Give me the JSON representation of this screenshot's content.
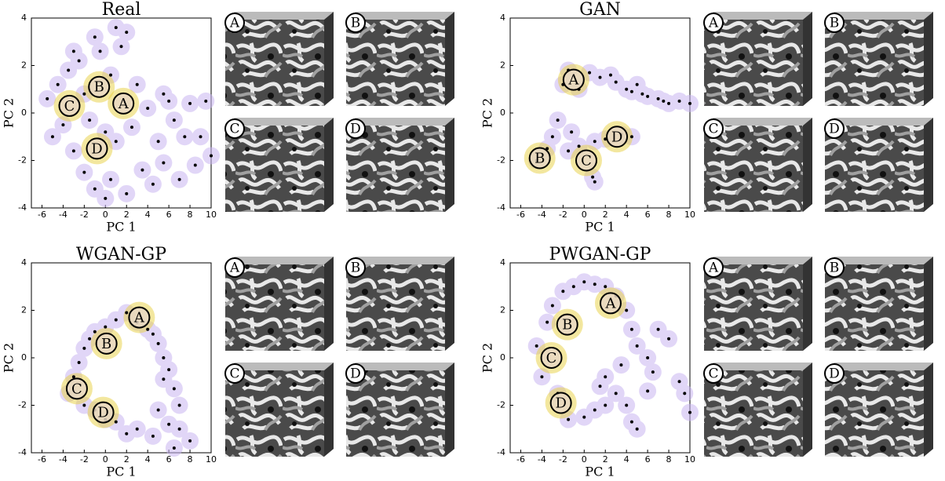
{
  "chart_data": [
    {
      "type": "scatter",
      "title": "Real",
      "xlabel": "PC 1",
      "ylabel": "PC 2",
      "xlim": [
        -7,
        10
      ],
      "ylim": [
        -4,
        4
      ],
      "xticks": [
        -6,
        -4,
        -2,
        0,
        2,
        4,
        6,
        8,
        10
      ],
      "yticks": [
        -4,
        -2,
        0,
        2,
        4
      ],
      "color": "#000000",
      "x": [
        -5.5,
        -5,
        -4.5,
        -4,
        -3.5,
        -3,
        -2.5,
        -2,
        -2,
        -1.5,
        -1,
        -1,
        -0.5,
        0,
        0.5,
        0.5,
        1,
        1,
        1.5,
        2,
        2.5,
        3,
        3.5,
        4,
        4.5,
        5,
        5.5,
        5.5,
        6,
        6.5,
        7,
        7.5,
        8,
        8.5,
        9,
        9.5,
        10,
        2,
        -3,
        0
      ],
      "values": [
        0.6,
        -1,
        1.2,
        -0.5,
        1.8,
        -1.6,
        2.2,
        0.8,
        -2.5,
        -0.3,
        3.2,
        -3.2,
        2.6,
        -0.8,
        1.6,
        -2.8,
        3.6,
        -1.2,
        2.8,
        -3.4,
        -0.6,
        1.2,
        -2.4,
        0.2,
        -3,
        -1.2,
        0.8,
        -2.1,
        0.5,
        -0.3,
        -2.8,
        -1,
        0.4,
        -2.2,
        -1,
        0.5,
        -1.8,
        3.4,
        2.6,
        -3.6
      ],
      "annotations": [
        {
          "label": "A",
          "x": 1.7,
          "y": 0.4
        },
        {
          "label": "B",
          "x": -0.6,
          "y": 1.1
        },
        {
          "label": "C",
          "x": -3.4,
          "y": 0.3
        },
        {
          "label": "D",
          "x": -0.8,
          "y": -1.5
        }
      ]
    },
    {
      "type": "scatter",
      "title": "GAN",
      "xlabel": "PC 1",
      "ylabel": "PC 2",
      "xlim": [
        -7,
        10
      ],
      "ylim": [
        -4,
        4
      ],
      "xticks": [
        -6,
        -4,
        -2,
        0,
        2,
        4,
        6,
        8,
        10
      ],
      "yticks": [
        -4,
        -2,
        0,
        2,
        4
      ],
      "color": "#000000",
      "x": [
        -2,
        -1.5,
        -0.5,
        0.5,
        1.5,
        2.5,
        3,
        4,
        4.5,
        5,
        5.5,
        6,
        7,
        7.5,
        8,
        9,
        10,
        -2.5,
        -3,
        -3.5,
        -4.5,
        -1.5,
        -0.5,
        1,
        2,
        3.5,
        4.5,
        0.8,
        1,
        -1.2
      ],
      "values": [
        1.2,
        1.8,
        1,
        1.7,
        1.5,
        1.6,
        1.3,
        1,
        0.9,
        1.2,
        0.8,
        0.7,
        0.6,
        0.5,
        0.4,
        0.5,
        0.4,
        -0.3,
        -1,
        -1.5,
        -2,
        -1.6,
        -1.4,
        -1.2,
        -1.1,
        -0.9,
        -1,
        -2.7,
        -2.9,
        -0.8
      ],
      "annotations": [
        {
          "label": "A",
          "x": -1,
          "y": 1.4
        },
        {
          "label": "B",
          "x": -4.2,
          "y": -1.9
        },
        {
          "label": "C",
          "x": 0.2,
          "y": -2
        },
        {
          "label": "D",
          "x": 3.1,
          "y": -1
        }
      ]
    },
    {
      "type": "scatter",
      "title": "WGAN-GP",
      "xlabel": "PC 1",
      "ylabel": "PC 2",
      "xlim": [
        -7,
        10
      ],
      "ylim": [
        -4,
        4
      ],
      "xticks": [
        -6,
        -4,
        -2,
        0,
        2,
        4,
        6,
        8,
        10
      ],
      "yticks": [
        -4,
        -2,
        0,
        2,
        4
      ],
      "color": "#000000",
      "x": [
        -3.5,
        -3,
        -2.5,
        -2,
        -1.5,
        -1,
        0,
        1,
        2,
        3,
        4,
        4.5,
        5,
        5.5,
        6,
        6.5,
        7,
        7,
        6,
        5,
        4.5,
        3,
        2,
        1,
        0,
        -1,
        -2,
        8,
        6.5,
        5.5
      ],
      "values": [
        -1.5,
        -0.8,
        -0.2,
        0.4,
        0.8,
        1.1,
        1.3,
        1.6,
        1.9,
        1.5,
        1.2,
        1,
        0.6,
        0,
        -0.5,
        -1.3,
        -2,
        -3,
        -2.8,
        -2.2,
        -3.3,
        -3,
        -3.2,
        -2.7,
        -2.6,
        -2.2,
        -2,
        -3.5,
        -3.8,
        -0.9
      ],
      "annotations": [
        {
          "label": "A",
          "x": 3.2,
          "y": 1.7
        },
        {
          "label": "B",
          "x": 0.1,
          "y": 0.6
        },
        {
          "label": "C",
          "x": -2.7,
          "y": -1.3
        },
        {
          "label": "D",
          "x": -0.2,
          "y": -2.3
        }
      ]
    },
    {
      "type": "scatter",
      "title": "PWGAN-GP",
      "xlabel": "PC 1",
      "ylabel": "PC 2",
      "xlim": [
        -7,
        10
      ],
      "ylim": [
        -4,
        4
      ],
      "xticks": [
        -6,
        -4,
        -2,
        0,
        2,
        4,
        6,
        8,
        10
      ],
      "yticks": [
        -4,
        -2,
        0,
        2,
        4
      ],
      "color": "#000000",
      "x": [
        -4.5,
        -4,
        -3.5,
        -3,
        -2.5,
        -2,
        -1,
        0,
        1,
        2,
        3,
        4,
        4.5,
        5,
        6,
        6.5,
        7,
        8,
        9,
        9.5,
        10,
        -1.5,
        0,
        1,
        2,
        3,
        4,
        4.5,
        5,
        2,
        3.5,
        1.5,
        6
      ],
      "values": [
        0.5,
        -0.8,
        1.5,
        2.2,
        -1.5,
        2.8,
        3,
        3.2,
        3.1,
        3,
        2.6,
        2,
        1.2,
        0.5,
        0,
        -0.6,
        1.2,
        0.8,
        -1,
        -1.5,
        -2.3,
        -2.6,
        -2.5,
        -2.2,
        -2,
        -1.5,
        -2,
        -2.7,
        -3,
        -0.8,
        -0.3,
        -1.2,
        -1.4
      ],
      "annotations": [
        {
          "label": "A",
          "x": 2.5,
          "y": 2.3
        },
        {
          "label": "B",
          "x": -1.6,
          "y": 1.4
        },
        {
          "label": "C",
          "x": -3.1,
          "y": 0
        },
        {
          "label": "D",
          "x": -2.2,
          "y": -1.9
        }
      ]
    }
  ]
}
